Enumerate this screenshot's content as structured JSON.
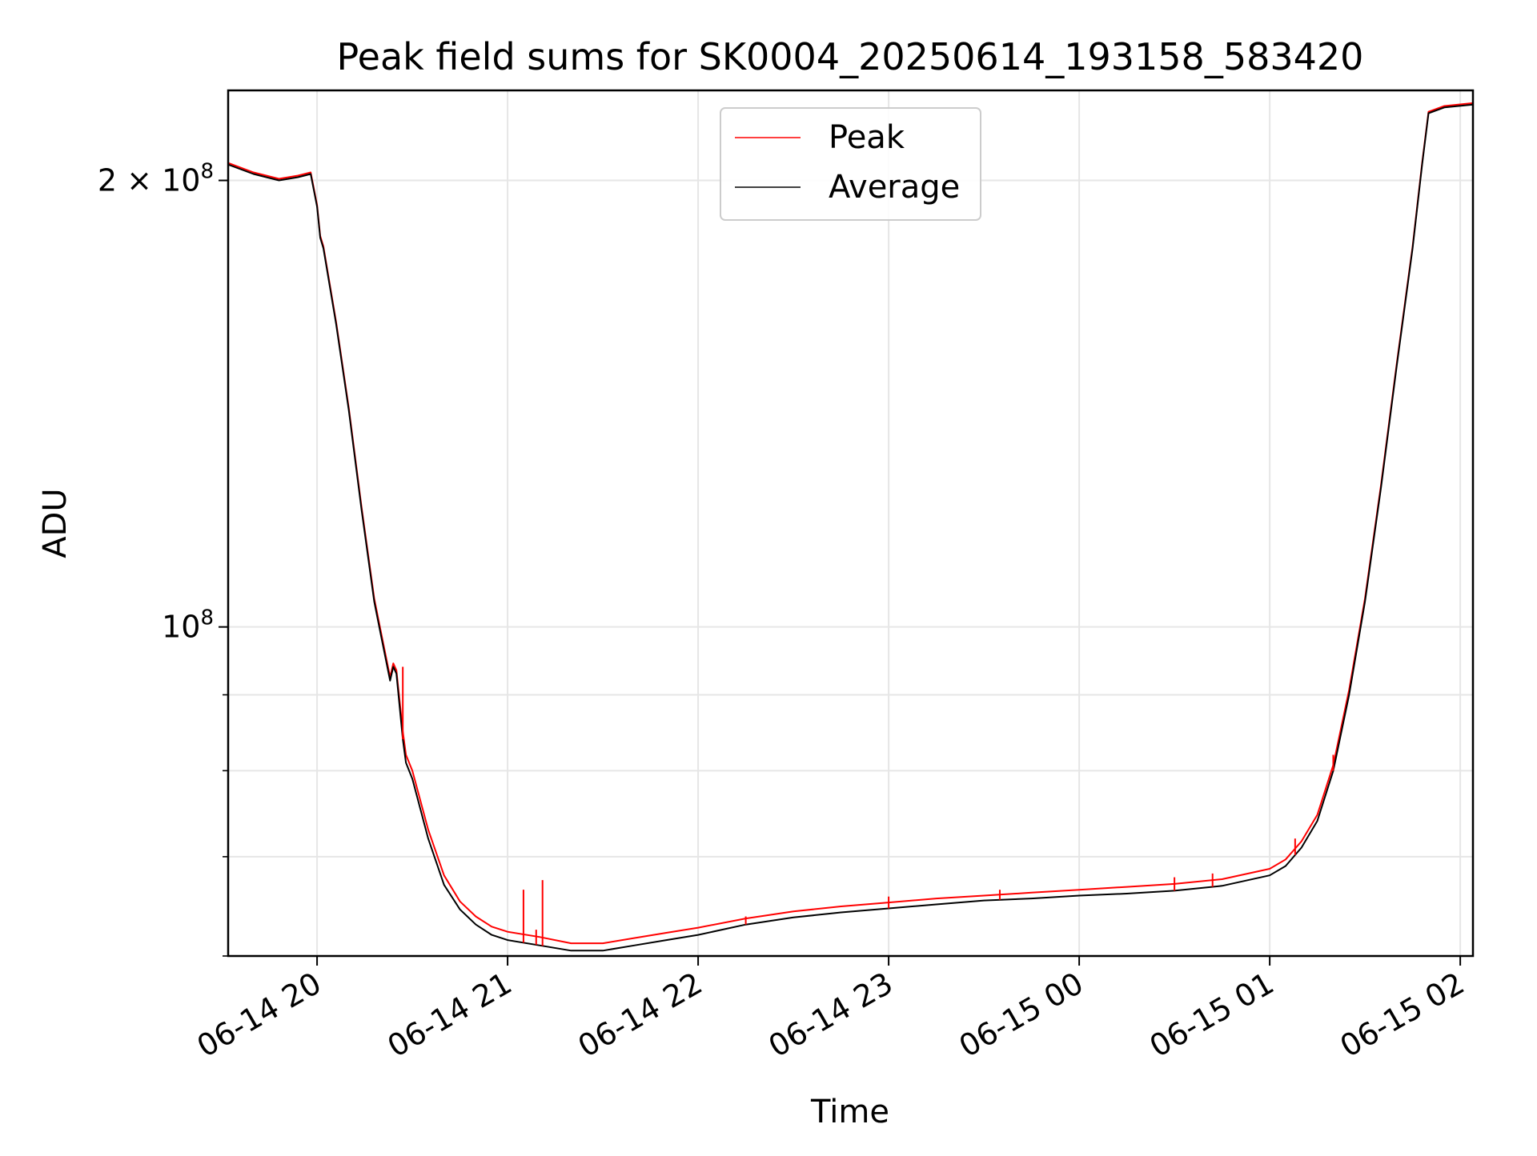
{
  "chart_data": {
    "type": "line",
    "title": "Peak field sums for SK0004_20250614_193158_583420",
    "xlabel": "Time",
    "ylabel": "ADU",
    "y_scale": "log",
    "ylim": [
      60000000,
      230000000
    ],
    "xlim": [
      "2025-06-14 19:32",
      "2025-06-15 02:04"
    ],
    "grid": true,
    "legend": {
      "position": "upper center",
      "entries": [
        "Peak",
        "Average"
      ]
    },
    "x_ticks": [
      {
        "t": "2025-06-14 20:00",
        "label": "06-14 20"
      },
      {
        "t": "2025-06-14 21:00",
        "label": "06-14 21"
      },
      {
        "t": "2025-06-14 22:00",
        "label": "06-14 22"
      },
      {
        "t": "2025-06-14 23:00",
        "label": "06-14 23"
      },
      {
        "t": "2025-06-15 00:00",
        "label": "06-15 00"
      },
      {
        "t": "2025-06-15 01:00",
        "label": "06-15 01"
      },
      {
        "t": "2025-06-15 02:00",
        "label": "06-15 02"
      }
    ],
    "y_ticks": [
      {
        "value": 200000000,
        "mantissa": "2",
        "times": "×",
        "base": "10",
        "exp": "8"
      },
      {
        "value": 100000000,
        "mantissa": "",
        "times": "",
        "base": "10",
        "exp": "8"
      }
    ],
    "y_minor_ticks": [
      60000000,
      70000000,
      80000000,
      90000000
    ],
    "colors": {
      "peak": "#ff0000",
      "average": "#000000"
    },
    "series": [
      {
        "name": "Average",
        "x": [
          "2025-06-14 19:32",
          "2025-06-14 19:40",
          "2025-06-14 19:48",
          "2025-06-14 19:54",
          "2025-06-14 19:58",
          "2025-06-14 20:00",
          "2025-06-14 20:01",
          "2025-06-14 20:02",
          "2025-06-14 20:06",
          "2025-06-14 20:10",
          "2025-06-14 20:14",
          "2025-06-14 20:18",
          "2025-06-14 20:20",
          "2025-06-14 20:23",
          "2025-06-14 20:24",
          "2025-06-14 20:25",
          "2025-06-14 20:27",
          "2025-06-14 20:28",
          "2025-06-14 20:30",
          "2025-06-14 20:35",
          "2025-06-14 20:40",
          "2025-06-14 20:45",
          "2025-06-14 20:50",
          "2025-06-14 20:55",
          "2025-06-14 21:00",
          "2025-06-14 21:10",
          "2025-06-14 21:20",
          "2025-06-14 21:30",
          "2025-06-14 21:40",
          "2025-06-14 21:50",
          "2025-06-14 22:00",
          "2025-06-14 22:15",
          "2025-06-14 22:30",
          "2025-06-14 22:45",
          "2025-06-14 23:00",
          "2025-06-14 23:15",
          "2025-06-14 23:30",
          "2025-06-14 23:45",
          "2025-06-15 00:00",
          "2025-06-15 00:15",
          "2025-06-15 00:30",
          "2025-06-15 00:45",
          "2025-06-15 01:00",
          "2025-06-15 01:05",
          "2025-06-15 01:10",
          "2025-06-15 01:15",
          "2025-06-15 01:20",
          "2025-06-15 01:25",
          "2025-06-15 01:30",
          "2025-06-15 01:35",
          "2025-06-15 01:40",
          "2025-06-15 01:45",
          "2025-06-15 01:48",
          "2025-06-15 01:50",
          "2025-06-15 01:55",
          "2025-06-15 02:04"
        ],
        "y": [
          205000000,
          202000000,
          200000000,
          201000000,
          202000000,
          192000000,
          183000000,
          180000000,
          160000000,
          140000000,
          120000000,
          104000000,
          99000000,
          92000000,
          94000000,
          93000000,
          84000000,
          81000000,
          79000000,
          72000000,
          67000000,
          64500000,
          63000000,
          62000000,
          61500000,
          61000000,
          60500000,
          60500000,
          61000000,
          61500000,
          62000000,
          63000000,
          63700000,
          64200000,
          64600000,
          65000000,
          65400000,
          65600000,
          65900000,
          66100000,
          66400000,
          66900000,
          68000000,
          69000000,
          71000000,
          74000000,
          80000000,
          90000000,
          104000000,
          124000000,
          150000000,
          180000000,
          205000000,
          222000000,
          224000000,
          225000000
        ]
      },
      {
        "name": "Peak",
        "x": [
          "2025-06-14 19:32",
          "2025-06-14 19:40",
          "2025-06-14 19:48",
          "2025-06-14 19:54",
          "2025-06-14 19:58",
          "2025-06-14 20:00",
          "2025-06-14 20:01",
          "2025-06-14 20:02",
          "2025-06-14 20:06",
          "2025-06-14 20:10",
          "2025-06-14 20:14",
          "2025-06-14 20:18",
          "2025-06-14 20:20",
          "2025-06-14 20:23",
          "2025-06-14 20:24",
          "2025-06-14 20:25",
          "2025-06-14 20:27",
          "2025-06-14 20:28",
          "2025-06-14 20:30",
          "2025-06-14 20:35",
          "2025-06-14 20:40",
          "2025-06-14 20:45",
          "2025-06-14 20:50",
          "2025-06-14 20:55",
          "2025-06-14 21:00",
          "2025-06-14 21:10",
          "2025-06-14 21:20",
          "2025-06-14 21:30",
          "2025-06-14 21:40",
          "2025-06-14 21:50",
          "2025-06-14 22:00",
          "2025-06-14 22:15",
          "2025-06-14 22:30",
          "2025-06-14 22:45",
          "2025-06-14 23:00",
          "2025-06-14 23:15",
          "2025-06-14 23:30",
          "2025-06-14 23:45",
          "2025-06-15 00:00",
          "2025-06-15 00:15",
          "2025-06-15 00:30",
          "2025-06-15 00:45",
          "2025-06-15 01:00",
          "2025-06-15 01:05",
          "2025-06-15 01:10",
          "2025-06-15 01:15",
          "2025-06-15 01:20",
          "2025-06-15 01:25",
          "2025-06-15 01:30",
          "2025-06-15 01:35",
          "2025-06-15 01:40",
          "2025-06-15 01:45",
          "2025-06-15 01:48",
          "2025-06-15 01:50",
          "2025-06-15 01:55",
          "2025-06-15 02:04"
        ],
        "y": [
          205500000,
          202500000,
          200500000,
          201500000,
          202500000,
          192500000,
          183500000,
          180500000,
          160500000,
          140500000,
          120500000,
          104500000,
          99500000,
          92500000,
          94500000,
          93500000,
          85000000,
          82000000,
          80000000,
          73000000,
          68000000,
          65300000,
          63800000,
          62800000,
          62300000,
          61800000,
          61200000,
          61200000,
          61700000,
          62200000,
          62700000,
          63600000,
          64300000,
          64800000,
          65200000,
          65600000,
          65900000,
          66200000,
          66500000,
          66800000,
          67100000,
          67600000,
          68700000,
          69700000,
          71700000,
          74700000,
          80700000,
          90700000,
          104500000,
          124500000,
          150500000,
          180500000,
          205500000,
          222500000,
          224500000,
          225500000
        ]
      }
    ],
    "peak_spikes": [
      {
        "t": "2025-06-14 20:27",
        "y": 94000000
      },
      {
        "t": "2025-06-14 21:05",
        "y": 66500000
      },
      {
        "t": "2025-06-14 21:11",
        "y": 67500000
      },
      {
        "t": "2025-06-14 21:09",
        "y": 62500000
      },
      {
        "t": "2025-06-14 22:15",
        "y": 63800000
      },
      {
        "t": "2025-06-14 23:00",
        "y": 65800000
      },
      {
        "t": "2025-06-14 23:35",
        "y": 66500000
      },
      {
        "t": "2025-06-15 00:30",
        "y": 67800000
      },
      {
        "t": "2025-06-15 00:42",
        "y": 68200000
      },
      {
        "t": "2025-06-15 01:08",
        "y": 72000000
      },
      {
        "t": "2025-06-15 01:20",
        "y": 82000000
      }
    ]
  }
}
